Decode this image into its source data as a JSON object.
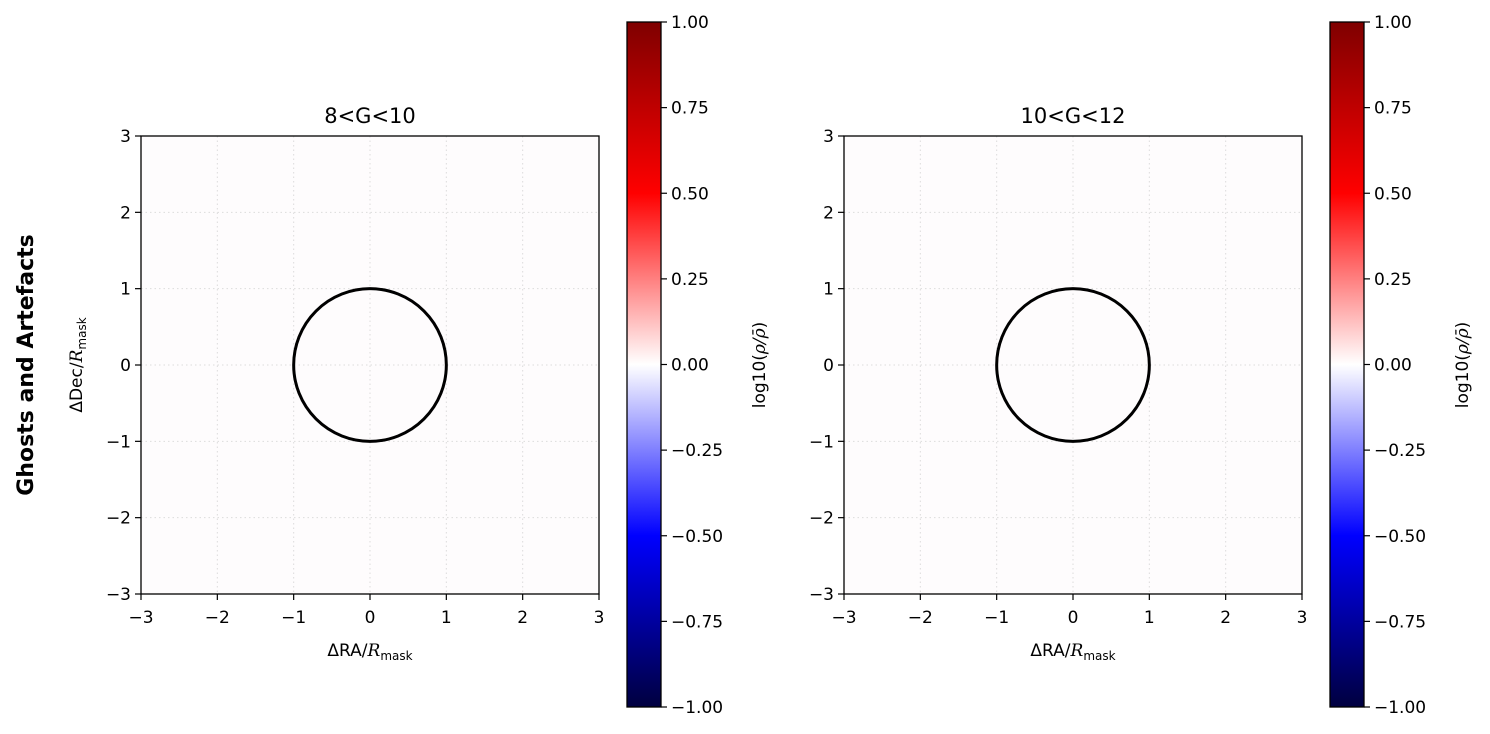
{
  "figure": {
    "row_label": "Ghosts and Artefacts"
  },
  "chart_data": [
    {
      "type": "heatmap",
      "title": "8<G<10",
      "xlabel_main": "ΔRA/",
      "xlabel_italic": "R",
      "xlabel_sub": "mask",
      "ylabel_main": "ΔDec/",
      "ylabel_italic": "R",
      "ylabel_sub": "mask",
      "xlim": [
        -3,
        3
      ],
      "ylim": [
        -3,
        3
      ],
      "xticks": [
        -3,
        -2,
        -1,
        0,
        1,
        2,
        3
      ],
      "yticks": [
        -3,
        -2,
        -1,
        0,
        1,
        2,
        3
      ],
      "xtick_labels": [
        "−3",
        "−2",
        "−1",
        "0",
        "1",
        "2",
        "3"
      ],
      "ytick_labels": [
        "−3",
        "−2",
        "−1",
        "0",
        "1",
        "2",
        "3"
      ],
      "grid": true,
      "field_value": 0.0,
      "circle": {
        "center": [
          0,
          0
        ],
        "radius": 1
      },
      "colorbar": {
        "label_main": "log10(",
        "label_italic": "ρ/ρ̄",
        "label_end": ")",
        "range": [
          -1.0,
          1.0
        ],
        "ticks": [
          1.0,
          0.75,
          0.5,
          0.25,
          0.0,
          -0.25,
          -0.5,
          -0.75,
          -1.0
        ],
        "tick_labels": [
          "1.00",
          "0.75",
          "0.50",
          "0.25",
          "0.00",
          "−0.25",
          "−0.50",
          "−0.75",
          "−1.00"
        ],
        "colormap": [
          "#00003f",
          "#0000ff",
          "#ffffff",
          "#ff0000",
          "#7f0000"
        ]
      }
    },
    {
      "type": "heatmap",
      "title": "10<G<12",
      "xlabel_main": "ΔRA/",
      "xlabel_italic": "R",
      "xlabel_sub": "mask",
      "xlim": [
        -3,
        3
      ],
      "ylim": [
        -3,
        3
      ],
      "xticks": [
        -3,
        -2,
        -1,
        0,
        1,
        2,
        3
      ],
      "yticks": [
        -3,
        -2,
        -1,
        0,
        1,
        2,
        3
      ],
      "xtick_labels": [
        "−3",
        "−2",
        "−1",
        "0",
        "1",
        "2",
        "3"
      ],
      "ytick_labels": [
        "−3",
        "−2",
        "−1",
        "0",
        "1",
        "2",
        "3"
      ],
      "grid": true,
      "field_value": 0.0,
      "circle": {
        "center": [
          0,
          0
        ],
        "radius": 1
      },
      "colorbar": {
        "label_main": "log10(",
        "label_italic": "ρ/ρ̄",
        "label_end": ")",
        "range": [
          -1.0,
          1.0
        ],
        "ticks": [
          1.0,
          0.75,
          0.5,
          0.25,
          0.0,
          -0.25,
          -0.5,
          -0.75,
          -1.0
        ],
        "tick_labels": [
          "1.00",
          "0.75",
          "0.50",
          "0.25",
          "0.00",
          "−0.25",
          "−0.50",
          "−0.75",
          "−1.00"
        ],
        "colormap": [
          "#00003f",
          "#0000ff",
          "#ffffff",
          "#ff0000",
          "#7f0000"
        ]
      }
    }
  ]
}
